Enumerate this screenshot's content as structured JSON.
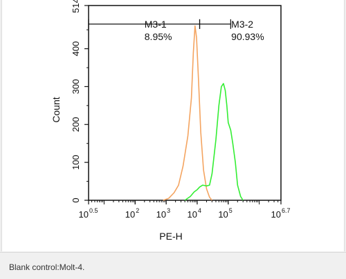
{
  "caption": "Blank control:Molt-4.",
  "chart_data": {
    "type": "line",
    "xlabel": "PE-H",
    "ylabel": "Count",
    "x_scale": "log",
    "xlim": [
      3.16,
      5000000
    ],
    "ylim": [
      0,
      514
    ],
    "y_ticks": [
      0,
      100,
      200,
      300,
      400,
      514
    ],
    "x_ticks": [
      {
        "base": "10",
        "exp": "0.5",
        "value": 3.16
      },
      {
        "base": "10",
        "exp": "2",
        "value": 100
      },
      {
        "base": "10",
        "exp": "3",
        "value": 1000
      },
      {
        "base": "10",
        "exp": "4",
        "value": 10000
      },
      {
        "base": "10",
        "exp": "5",
        "value": 100000
      },
      {
        "base": "10",
        "exp": "6.7",
        "value": 5000000
      }
    ],
    "gates": [
      {
        "name": "M3-1",
        "percent": "8.95%",
        "x_range": [
          3.16,
          12000
        ]
      },
      {
        "name": "M3-2",
        "percent": "90.93%",
        "x_range": [
          12000,
          120000
        ]
      }
    ],
    "gate_y": 465,
    "series": [
      {
        "color": "#f4a460",
        "x": [
          800,
          1200,
          1800,
          2500,
          3500,
          5000,
          6500,
          7500,
          8500,
          9500,
          11000,
          13000,
          16000,
          20000,
          25000,
          30000
        ],
        "y": [
          0,
          5,
          20,
          40,
          90,
          170,
          270,
          390,
          460,
          430,
          320,
          180,
          80,
          30,
          8,
          0
        ]
      },
      {
        "color": "#33ee33",
        "x": [
          4000,
          6000,
          8000,
          10000,
          12000,
          15000,
          20000,
          25000,
          30000,
          40000,
          50000,
          60000,
          70000,
          80000,
          90000,
          100000,
          120000,
          140000,
          170000,
          200000,
          250000,
          300000
        ],
        "y": [
          0,
          10,
          22,
          28,
          35,
          40,
          38,
          40,
          70,
          160,
          250,
          300,
          308,
          290,
          250,
          205,
          185,
          150,
          100,
          40,
          10,
          0
        ]
      }
    ]
  }
}
